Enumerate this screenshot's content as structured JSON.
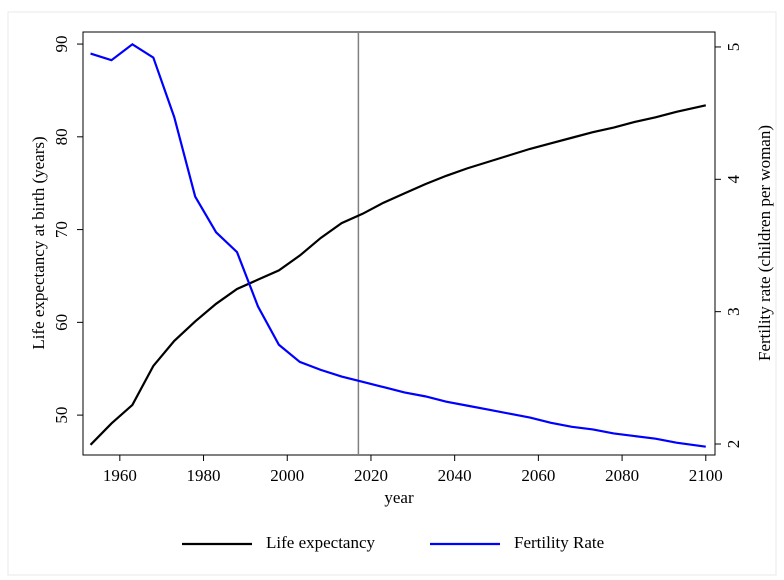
{
  "chart_data": {
    "type": "line",
    "x": [
      1953,
      1958,
      1963,
      1968,
      1973,
      1978,
      1983,
      1988,
      1993,
      1998,
      2003,
      2008,
      2013,
      2018,
      2023,
      2028,
      2033,
      2038,
      2043,
      2048,
      2053,
      2058,
      2063,
      2068,
      2073,
      2078,
      2083,
      2088,
      2093,
      2100
    ],
    "series": [
      {
        "name": "Life expectancy",
        "color": "#000000",
        "values": [
          46.8,
          49.1,
          51.1,
          55.3,
          58.0,
          60.1,
          62.0,
          63.6,
          64.6,
          65.6,
          67.2,
          69.1,
          70.7,
          71.7,
          72.9,
          73.9,
          74.9,
          75.8,
          76.6,
          77.3,
          78.0,
          78.7,
          79.3,
          79.9,
          80.5,
          81.0,
          81.6,
          82.1,
          82.7,
          83.4
        ]
      },
      {
        "name": "Fertility Rate",
        "color": "#0000ff",
        "axis": "y2",
        "values": [
          4.95,
          4.9,
          5.02,
          4.92,
          4.47,
          3.87,
          3.6,
          3.45,
          3.04,
          2.75,
          2.62,
          2.56,
          2.51,
          2.47,
          2.43,
          2.39,
          2.36,
          2.32,
          2.29,
          2.26,
          2.23,
          2.2,
          2.16,
          2.13,
          2.11,
          2.08,
          2.06,
          2.04,
          2.01,
          1.98
        ]
      }
    ],
    "xlabel": "year",
    "ylabel": "Life expectancy at birth (years)",
    "y2label": "Fertility rate (children per woman)",
    "xlim": [
      1951.2,
      2102.2
    ],
    "xticks": [
      1960,
      1980,
      2000,
      2020,
      2040,
      2060,
      2080,
      2100
    ],
    "ylim": [
      45.7,
      91.3
    ],
    "yticks": [
      50,
      60,
      70,
      80,
      90
    ],
    "y2lim": [
      1.917,
      5.113
    ],
    "y2ticks": [
      2,
      3,
      4,
      5
    ],
    "vline": 2017,
    "vline_color": "#808080",
    "legend": "bottom"
  }
}
